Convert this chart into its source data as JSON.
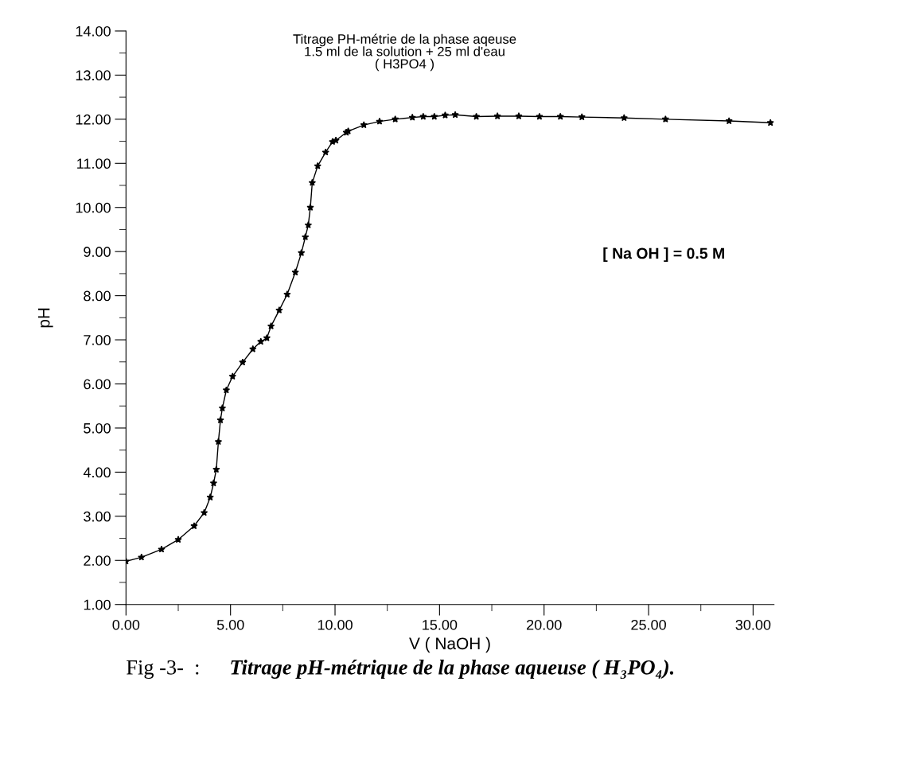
{
  "chart_data": {
    "type": "line",
    "title": "Titrage PH-métrie de la phase aqeuse\n1.5 ml de la solution + 25 ml d'eau\n( H3PO4 )",
    "xlabel": "V ( NaOH )",
    "ylabel": "pH",
    "x": [
      0,
      0.74,
      1.7,
      2.5,
      3.26,
      3.74,
      4.03,
      4.19,
      4.32,
      4.42,
      4.52,
      4.61,
      4.8,
      5.1,
      5.58,
      6.07,
      6.45,
      6.74,
      6.94,
      7.33,
      7.71,
      8.1,
      8.39,
      8.58,
      8.72,
      8.82,
      8.91,
      9.17,
      9.55,
      9.88,
      10.04,
      10.54,
      10.63,
      11.38,
      12.13,
      12.88,
      13.7,
      14.22,
      14.75,
      15.27,
      15.75,
      16.76,
      17.77,
      18.79,
      19.78,
      20.78,
      21.81,
      23.83,
      25.81,
      28.85,
      30.83
    ],
    "series": [
      {
        "color": "#000000",
        "values": [
          1.98,
          2.07,
          2.25,
          2.47,
          2.78,
          3.08,
          3.43,
          3.75,
          4.06,
          4.69,
          5.18,
          5.45,
          5.86,
          6.17,
          6.49,
          6.79,
          6.96,
          7.04,
          7.31,
          7.67,
          8.03,
          8.53,
          8.97,
          9.33,
          9.6,
          10.0,
          10.56,
          10.94,
          11.25,
          11.49,
          11.52,
          11.7,
          11.73,
          11.87,
          11.95,
          12.0,
          12.04,
          12.06,
          12.06,
          12.09,
          12.1,
          12.06,
          12.07,
          12.07,
          12.06,
          12.06,
          12.05,
          12.03,
          12.0,
          11.96,
          11.92
        ]
      }
    ],
    "xlim": [
      0,
      31
    ],
    "ylim": [
      1,
      14
    ],
    "xticks": [
      {
        "value": 0,
        "label": "0.00"
      },
      {
        "value": 5,
        "label": "5.00"
      },
      {
        "value": 10,
        "label": "10.00"
      },
      {
        "value": 15,
        "label": "15.00"
      },
      {
        "value": 20,
        "label": "20.00"
      },
      {
        "value": 25,
        "label": "25.00"
      },
      {
        "value": 30,
        "label": "30.00"
      }
    ],
    "yticks": [
      {
        "value": 1,
        "label": "1.00"
      },
      {
        "value": 2,
        "label": "2.00"
      },
      {
        "value": 3,
        "label": "3.00"
      },
      {
        "value": 4,
        "label": "4.00"
      },
      {
        "value": 5,
        "label": "5.00"
      },
      {
        "value": 6,
        "label": "6.00"
      },
      {
        "value": 7,
        "label": "7.00"
      },
      {
        "value": 8,
        "label": "8.00"
      },
      {
        "value": 9,
        "label": "9.00"
      },
      {
        "value": 10,
        "label": "10.00"
      },
      {
        "value": 11,
        "label": "11.00"
      },
      {
        "value": 12,
        "label": "12.00"
      },
      {
        "value": 13,
        "label": "13.00"
      },
      {
        "value": 14,
        "label": "14.00"
      }
    ],
    "marker": "star",
    "line_style": "solid",
    "grid": false,
    "legend": false,
    "annotations": [
      "[ Na OH ] = 0.5 M",
      "Fig -3-  :",
      "Titrage pH-métrique de la phase aqueuse ( H₃PO₄)."
    ]
  }
}
